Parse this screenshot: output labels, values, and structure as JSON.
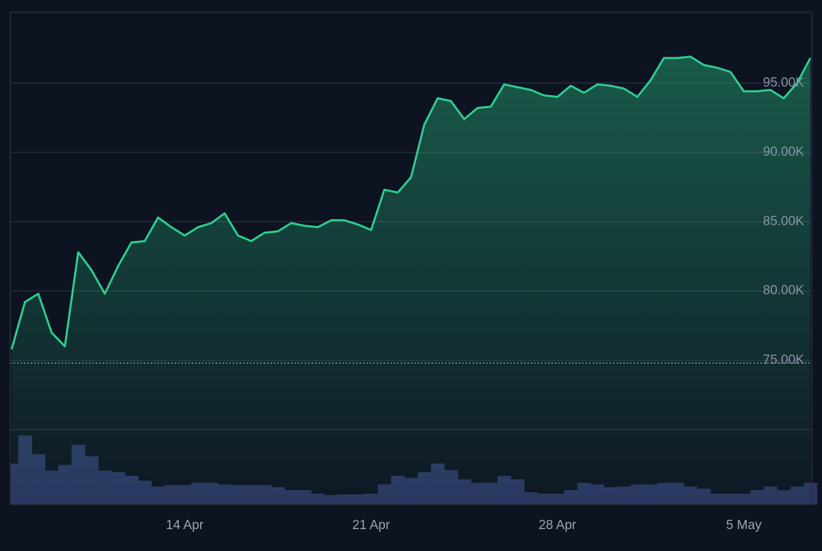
{
  "chart_data": {
    "type": "line",
    "categories": [
      null,
      null,
      null,
      null,
      null,
      null,
      null,
      null,
      null,
      null,
      null,
      null,
      null,
      "14 Apr",
      null,
      null,
      null,
      null,
      null,
      null,
      null,
      null,
      null,
      null,
      null,
      null,
      null,
      "21 Apr",
      null,
      null,
      null,
      null,
      null,
      null,
      null,
      null,
      null,
      null,
      null,
      null,
      null,
      "28 Apr",
      null,
      null,
      null,
      null,
      null,
      null,
      null,
      null,
      null,
      null,
      null,
      null,
      null,
      "5 May",
      null,
      null,
      null,
      null,
      null
    ],
    "series": [
      {
        "color": "#2ccf8e",
        "fill": true,
        "values": [
          75800,
          79200,
          79800,
          77000,
          76000,
          82800,
          81500,
          79800,
          81800,
          83500,
          83600,
          85300,
          84600,
          84000,
          84600,
          84900,
          85600,
          84000,
          83600,
          84200,
          84300,
          84900,
          84700,
          84600,
          85100,
          85100,
          84800,
          84400,
          87300,
          87100,
          88200,
          92000,
          93900,
          93700,
          92400,
          93200,
          93300,
          94900,
          94700,
          94500,
          94100,
          94000,
          94800,
          94300,
          94900,
          94800,
          94600,
          94000,
          95200,
          96800,
          96800,
          96900,
          96300,
          96100,
          95800,
          94400,
          94400,
          94500,
          93900,
          95000,
          96800
        ]
      },
      {
        "color": "#2b3560",
        "axis": "y2",
        "type": "bar",
        "values": [
          57,
          96,
          70,
          47,
          55,
          83,
          67,
          47,
          45,
          40,
          33,
          25,
          27,
          27,
          30,
          30,
          28,
          27,
          27,
          27,
          24,
          20,
          20,
          15,
          13,
          14,
          14,
          15,
          28,
          40,
          37,
          45,
          57,
          48,
          35,
          30,
          30,
          40,
          35,
          17,
          15,
          15,
          20,
          30,
          28,
          24,
          25,
          28,
          28,
          30,
          30,
          25,
          22,
          15,
          15,
          15,
          20,
          25,
          20,
          25,
          30
        ]
      }
    ],
    "ylim": [
      64600,
      100100
    ],
    "yticks": [
      {
        "value": 70000,
        "label": null
      },
      {
        "value": 75000,
        "label": "75.00K"
      },
      {
        "value": 80000,
        "label": "80.00K"
      },
      {
        "value": 85000,
        "label": "85.00K"
      },
      {
        "value": 90000,
        "label": "90.00K"
      },
      {
        "value": 95000,
        "label": "95.00K"
      }
    ],
    "y2lim": [
      0,
      100
    ],
    "baseline": 74800,
    "grid": true
  }
}
